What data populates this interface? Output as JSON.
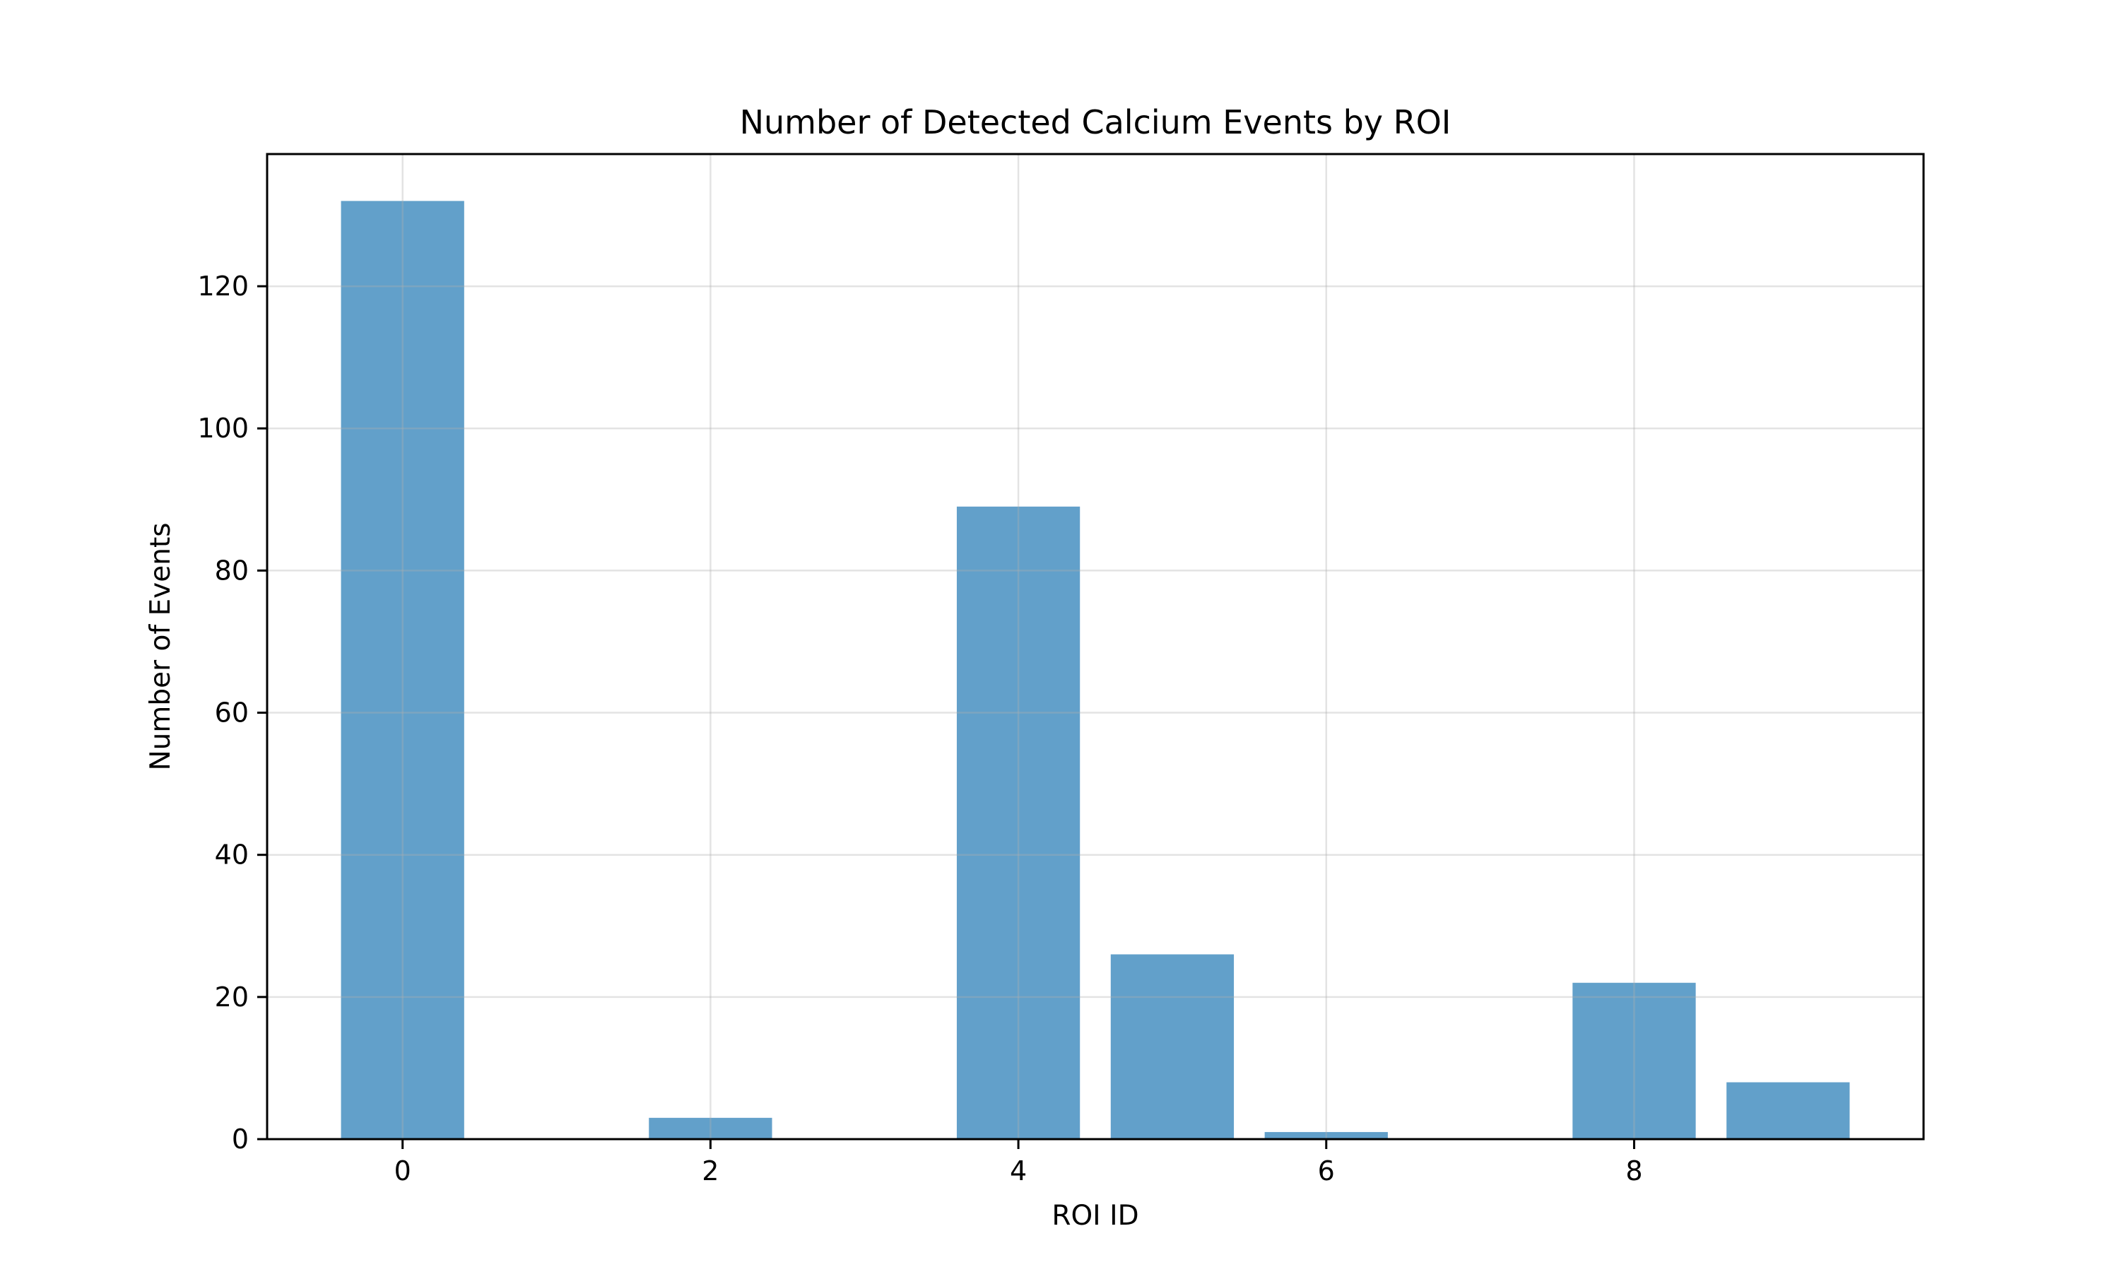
{
  "chart_data": {
    "type": "bar",
    "title": "Number of Detected Calcium Events by ROI",
    "xlabel": "ROI ID",
    "ylabel": "Number of Events",
    "x": [
      0,
      1,
      2,
      3,
      4,
      5,
      6,
      7,
      8,
      9
    ],
    "values": [
      132,
      0,
      3,
      0,
      89,
      26,
      1,
      0,
      22,
      8
    ],
    "xlim": [
      -0.88,
      9.88
    ],
    "ylim": [
      0,
      138.6
    ],
    "xticks": [
      0,
      2,
      4,
      6,
      8
    ],
    "yticks": [
      0,
      20,
      40,
      60,
      80,
      100,
      120
    ],
    "bar_color": "#1f77b4",
    "grid": true,
    "legend": "none"
  }
}
